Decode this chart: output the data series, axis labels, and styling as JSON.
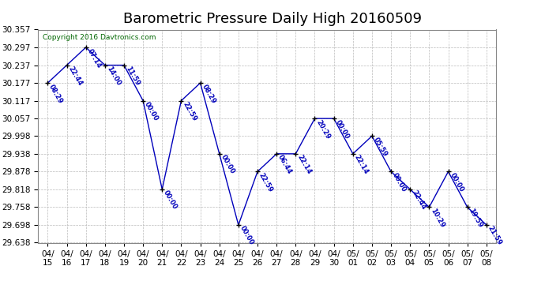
{
  "title": "Barometric Pressure Daily High 20160509",
  "copyright": "Copyright 2016 Davtronics.com",
  "dates": [
    "04/15",
    "04/16",
    "04/17",
    "04/18",
    "04/19",
    "04/20",
    "04/21",
    "04/22",
    "04/23",
    "04/24",
    "04/25",
    "04/26",
    "04/27",
    "04/28",
    "04/29",
    "04/30",
    "05/01",
    "05/02",
    "05/03",
    "05/04",
    "05/05",
    "05/06",
    "05/07",
    "05/08"
  ],
  "values": [
    30.177,
    30.237,
    30.297,
    30.237,
    30.237,
    30.117,
    29.818,
    30.117,
    30.177,
    29.938,
    29.698,
    29.878,
    29.938,
    29.938,
    30.057,
    30.057,
    29.938,
    29.998,
    29.878,
    29.818,
    29.758,
    29.878,
    29.758,
    29.698
  ],
  "times": [
    "08:29",
    "22:44",
    "07:14",
    "14:00",
    "11:59",
    "00:00",
    "00:00",
    "22:59",
    "08:29",
    "00:00",
    "00:00",
    "22:59",
    "06:44",
    "22:14",
    "20:29",
    "00:00",
    "22:14",
    "05:59",
    "00:00",
    "22:44",
    "10:29",
    "00:00",
    "19:59",
    "21:59"
  ],
  "ylim": [
    29.638,
    30.357
  ],
  "yticks": [
    29.638,
    29.698,
    29.758,
    29.818,
    29.878,
    29.938,
    29.998,
    30.057,
    30.117,
    30.177,
    30.237,
    30.297,
    30.357
  ],
  "line_color": "#0000bb",
  "marker_color": "#000000",
  "bg_color": "#ffffff",
  "grid_color": "#bbbbbb",
  "title_fontsize": 13,
  "tick_fontsize": 7.5,
  "legend_bg": "#0000bb",
  "legend_text_color": "#ffffff",
  "copyright_color": "#006600"
}
